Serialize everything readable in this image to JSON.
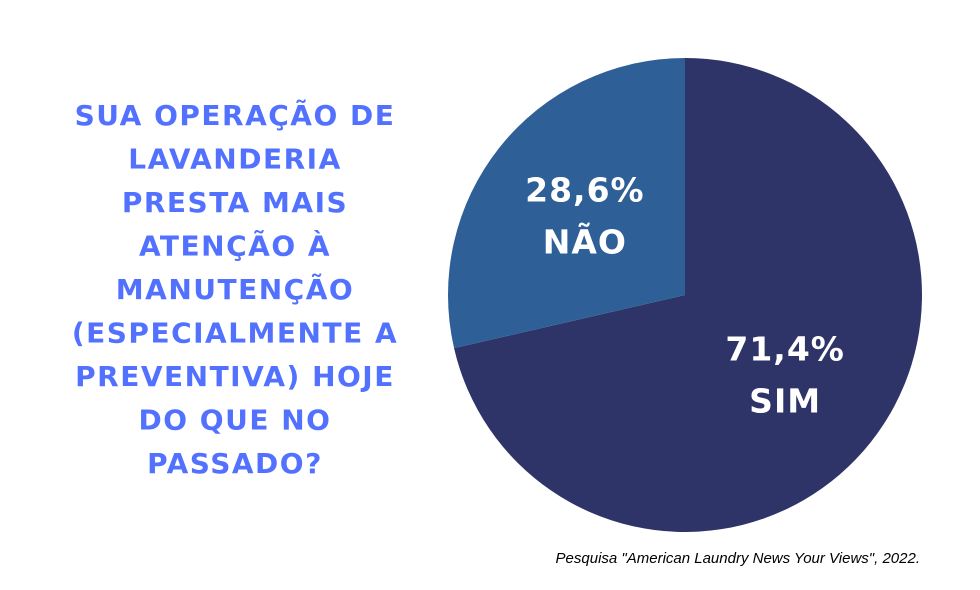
{
  "chart_data": {
    "type": "pie",
    "title": [
      "SUA OPERAÇÃO DE",
      "LAVANDERIA",
      "PRESTA MAIS",
      "ATENÇÃO À",
      "MANUTENÇÃO",
      "(ESPECIALMENTE A",
      "PREVENTIVA) HOJE",
      "DO QUE NO",
      "PASSADO?"
    ],
    "categories": [
      "SIM",
      "NÃO"
    ],
    "values": [
      71.4,
      28.6
    ],
    "value_labels": [
      "71,4%",
      "28,6%"
    ],
    "colors": [
      "#2f3468",
      "#2e5f96"
    ],
    "source": "Pesquisa \"American Laundry News Your Views\", 2022."
  }
}
